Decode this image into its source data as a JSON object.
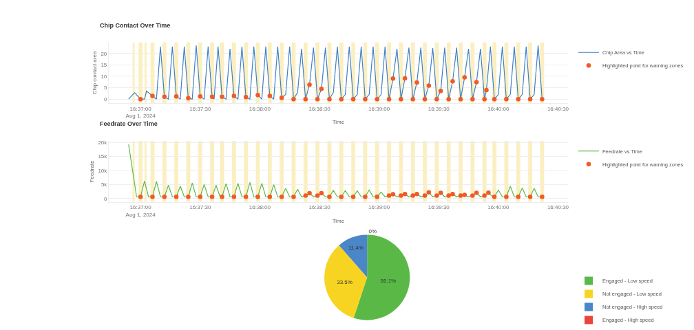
{
  "chart_data": [
    {
      "type": "line",
      "title": "Chip Contact Over Time",
      "xlabel": "Time",
      "ylabel": "Chip contact area",
      "xlim": [
        "2024-08-01T16:36:44",
        "2024-08-01T16:40:35"
      ],
      "xticks": [
        {
          "value": "2024-08-01T16:37:00",
          "label": "16:37:00\nAug 1, 2024"
        },
        {
          "value": "2024-08-01T16:37:30",
          "label": "16:37:30"
        },
        {
          "value": "2024-08-01T16:38:00",
          "label": "16:38:00"
        },
        {
          "value": "2024-08-01T16:38:30",
          "label": "16:38:30"
        },
        {
          "value": "2024-08-01T16:39:00",
          "label": "16:39:00"
        },
        {
          "value": "2024-08-01T16:39:30",
          "label": "16:39:30"
        },
        {
          "value": "2024-08-01T16:40:00",
          "label": "16:40:00"
        },
        {
          "value": "2024-08-01T16:40:30",
          "label": "16:40:30"
        }
      ],
      "ylim": [
        -1.8,
        24.8
      ],
      "yticks": [
        0,
        5,
        10,
        15,
        20
      ],
      "grid": "y",
      "legend": "top right",
      "series": [
        {
          "name": "Chip Area vs Time",
          "color": "#3f80c8",
          "x": [
            "2024-08-01T16:36:54",
            "2024-08-01T16:36:57",
            "2024-08-01T16:37:00",
            "2024-08-01T16:37:02",
            "2024-08-01T16:37:03",
            "2024-08-01T16:37:06",
            "2024-08-01T16:37:08",
            "2024-08-01T16:37:10",
            "2024-08-01T16:37:12",
            "2024-08-01T16:37:14",
            "2024-08-01T16:37:16",
            "2024-08-01T16:37:18",
            "2024-08-01T16:37:20",
            "2024-08-01T16:37:22",
            "2024-08-01T16:37:24",
            "2024-08-01T16:37:26",
            "2024-08-01T16:37:28",
            "2024-08-01T16:37:30",
            "2024-08-01T16:37:32",
            "2024-08-01T16:37:34",
            "2024-08-01T16:37:36",
            "2024-08-01T16:37:37",
            "2024-08-01T16:37:39",
            "2024-08-01T16:37:41",
            "2024-08-01T16:37:43",
            "2024-08-01T16:37:45",
            "2024-08-01T16:37:47",
            "2024-08-01T16:37:49",
            "2024-08-01T16:37:51",
            "2024-08-01T16:37:53",
            "2024-08-01T16:37:55",
            "2024-08-01T16:37:57",
            "2024-08-01T16:37:59",
            "2024-08-01T16:38:01",
            "2024-08-01T16:38:03",
            "2024-08-01T16:38:05",
            "2024-08-01T16:38:07",
            "2024-08-01T16:38:09",
            "2024-08-01T16:38:11",
            "2024-08-01T16:38:13",
            "2024-08-01T16:38:15",
            "2024-08-01T16:38:17",
            "2024-08-01T16:38:19",
            "2024-08-01T16:38:21",
            "2024-08-01T16:38:23",
            "2024-08-01T16:38:25",
            "2024-08-01T16:38:27",
            "2024-08-01T16:38:29",
            "2024-08-01T16:38:31",
            "2024-08-01T16:38:33",
            "2024-08-01T16:38:35",
            "2024-08-01T16:38:37",
            "2024-08-01T16:38:39",
            "2024-08-01T16:38:41",
            "2024-08-01T16:38:43",
            "2024-08-01T16:38:45",
            "2024-08-01T16:38:47",
            "2024-08-01T16:38:49",
            "2024-08-01T16:38:51",
            "2024-08-01T16:38:53",
            "2024-08-01T16:38:55",
            "2024-08-01T16:38:57",
            "2024-08-01T16:38:59",
            "2024-08-01T16:39:01",
            "2024-08-01T16:39:03",
            "2024-08-01T16:39:05",
            "2024-08-01T16:39:07",
            "2024-08-01T16:39:09",
            "2024-08-01T16:39:11",
            "2024-08-01T16:39:13",
            "2024-08-01T16:39:15",
            "2024-08-01T16:39:17",
            "2024-08-01T16:39:19",
            "2024-08-01T16:39:21",
            "2024-08-01T16:39:23",
            "2024-08-01T16:39:25",
            "2024-08-01T16:39:27",
            "2024-08-01T16:39:29",
            "2024-08-01T16:39:31",
            "2024-08-01T16:39:33",
            "2024-08-01T16:39:35",
            "2024-08-01T16:39:37",
            "2024-08-01T16:39:39",
            "2024-08-01T16:39:41",
            "2024-08-01T16:39:43",
            "2024-08-01T16:39:45",
            "2024-08-01T16:39:47",
            "2024-08-01T16:39:49",
            "2024-08-01T16:39:51",
            "2024-08-01T16:39:53",
            "2024-08-01T16:39:54",
            "2024-08-01T16:39:56",
            "2024-08-01T16:39:58",
            "2024-08-01T16:40:00",
            "2024-08-01T16:40:02",
            "2024-08-01T16:40:04",
            "2024-08-01T16:40:06",
            "2024-08-01T16:40:08",
            "2024-08-01T16:40:10",
            "2024-08-01T16:40:12",
            "2024-08-01T16:40:14",
            "2024-08-01T16:40:16",
            "2024-08-01T16:40:18",
            "2024-08-01T16:40:20",
            "2024-08-01T16:40:22"
          ],
          "values": [
            0,
            2.8,
            0,
            0,
            3.5,
            1.4,
            0,
            23,
            1.0,
            0,
            23,
            1.2,
            0,
            23,
            0.4,
            0,
            23.5,
            1.2,
            0,
            23,
            1.0,
            0,
            23,
            1.0,
            0,
            22,
            1.4,
            0,
            23,
            0.9,
            0,
            23,
            1.8,
            0,
            23,
            1.4,
            0,
            23,
            0.6,
            2,
            23,
            0,
            3,
            22,
            0,
            6.3,
            22.5,
            0,
            4.5,
            22.5,
            0,
            3,
            23,
            0,
            2,
            23,
            0,
            2,
            23,
            0,
            2,
            23,
            0,
            2,
            23,
            0,
            9.0,
            22,
            0,
            9.1,
            22.5,
            0,
            7.3,
            22.5,
            0,
            5.9,
            22.3,
            0,
            3.6,
            22.5,
            0,
            7.8,
            22.5,
            0,
            9.5,
            22,
            0,
            7.4,
            22,
            0,
            4.0,
            23,
            0,
            2,
            23,
            0,
            2,
            23,
            0,
            2,
            23,
            0,
            2,
            23.5,
            0
          ]
        },
        {
          "name": "Highlighted point for warning zones",
          "type": "scatter",
          "marker": "circle",
          "color": "#ef5a28",
          "x": [
            "2024-08-01T16:37:00",
            "2024-08-01T16:37:06",
            "2024-08-01T16:37:12",
            "2024-08-01T16:37:18",
            "2024-08-01T16:37:24",
            "2024-08-01T16:37:30",
            "2024-08-01T16:37:36",
            "2024-08-01T16:37:41",
            "2024-08-01T16:37:47",
            "2024-08-01T16:37:53",
            "2024-08-01T16:37:59",
            "2024-08-01T16:38:05",
            "2024-08-01T16:38:11",
            "2024-08-01T16:38:17",
            "2024-08-01T16:38:23",
            "2024-08-01T16:38:25",
            "2024-08-01T16:38:29",
            "2024-08-01T16:38:31",
            "2024-08-01T16:38:35",
            "2024-08-01T16:38:41",
            "2024-08-01T16:38:47",
            "2024-08-01T16:38:53",
            "2024-08-01T16:38:59",
            "2024-08-01T16:39:05",
            "2024-08-01T16:39:07",
            "2024-08-01T16:39:11",
            "2024-08-01T16:39:13",
            "2024-08-01T16:39:17",
            "2024-08-01T16:39:19",
            "2024-08-01T16:39:23",
            "2024-08-01T16:39:25",
            "2024-08-01T16:39:29",
            "2024-08-01T16:39:31",
            "2024-08-01T16:39:35",
            "2024-08-01T16:39:37",
            "2024-08-01T16:39:41",
            "2024-08-01T16:39:43",
            "2024-08-01T16:39:47",
            "2024-08-01T16:39:49",
            "2024-08-01T16:39:53",
            "2024-08-01T16:39:54",
            "2024-08-01T16:39:58",
            "2024-08-01T16:40:04",
            "2024-08-01T16:40:10",
            "2024-08-01T16:40:16",
            "2024-08-01T16:40:22"
          ],
          "values": [
            0,
            1.4,
            1.0,
            1.2,
            0.4,
            1.2,
            1.0,
            1.0,
            1.4,
            0.9,
            1.8,
            1.4,
            0.6,
            0,
            0,
            6.3,
            0,
            4.5,
            0,
            0,
            0,
            0,
            0,
            0,
            9.0,
            0,
            9.1,
            0,
            7.3,
            0,
            5.9,
            0,
            3.6,
            0,
            7.8,
            0,
            9.5,
            0,
            7.4,
            0,
            4.0,
            0,
            0,
            0,
            0,
            0
          ]
        }
      ],
      "bands": [
        {
          "axis": "x",
          "from": "2024-08-01T16:36:56",
          "to": "2024-08-01T16:36:57",
          "color": "#fcefbf"
        },
        {
          "axis": "x",
          "from": "2024-08-01T16:36:59",
          "to": "2024-08-01T16:37:01",
          "color": "#fcefbf"
        },
        {
          "axis": "x",
          "from": "2024-08-01T16:37:02",
          "to": "2024-08-01T16:37:03",
          "color": "#fcefbf"
        },
        {
          "axis": "x",
          "from": "2024-08-01T16:37:05",
          "to": "2024-08-01T16:37:07",
          "color": "#fcefbf"
        },
        {
          "axis": "x",
          "from": "2024-08-01T16:37:11",
          "to": "2024-08-01T16:37:13",
          "color": "#fcefbf"
        },
        {
          "axis": "x",
          "from": "2024-08-01T16:37:17",
          "to": "2024-08-01T16:37:19",
          "color": "#fcefbf"
        },
        {
          "axis": "x",
          "from": "2024-08-01T16:37:23",
          "to": "2024-08-01T16:37:25",
          "color": "#fcefbf"
        },
        {
          "axis": "x",
          "from": "2024-08-01T16:37:29",
          "to": "2024-08-01T16:37:31",
          "color": "#fcefbf"
        },
        {
          "axis": "x",
          "from": "2024-08-01T16:37:35",
          "to": "2024-08-01T16:37:37",
          "color": "#fcefbf"
        },
        {
          "axis": "x",
          "from": "2024-08-01T16:37:40",
          "to": "2024-08-01T16:37:42",
          "color": "#fcefbf"
        },
        {
          "axis": "x",
          "from": "2024-08-01T16:37:46",
          "to": "2024-08-01T16:37:48",
          "color": "#fcefbf"
        },
        {
          "axis": "x",
          "from": "2024-08-01T16:37:52",
          "to": "2024-08-01T16:37:54",
          "color": "#fcefbf"
        },
        {
          "axis": "x",
          "from": "2024-08-01T16:37:58",
          "to": "2024-08-01T16:38:00",
          "color": "#fcefbf"
        },
        {
          "axis": "x",
          "from": "2024-08-01T16:38:04",
          "to": "2024-08-01T16:38:06",
          "color": "#fcefbf"
        },
        {
          "axis": "x",
          "from": "2024-08-01T16:38:10",
          "to": "2024-08-01T16:38:12",
          "color": "#fcefbf"
        },
        {
          "axis": "x",
          "from": "2024-08-01T16:38:16",
          "to": "2024-08-01T16:38:18",
          "color": "#fcefbf"
        },
        {
          "axis": "x",
          "from": "2024-08-01T16:38:22",
          "to": "2024-08-01T16:38:24",
          "color": "#fcefbf"
        },
        {
          "axis": "x",
          "from": "2024-08-01T16:38:28",
          "to": "2024-08-01T16:38:30",
          "color": "#fcefbf"
        },
        {
          "axis": "x",
          "from": "2024-08-01T16:38:34",
          "to": "2024-08-01T16:38:36",
          "color": "#fcefbf"
        },
        {
          "axis": "x",
          "from": "2024-08-01T16:38:40",
          "to": "2024-08-01T16:38:42",
          "color": "#fcefbf"
        },
        {
          "axis": "x",
          "from": "2024-08-01T16:38:46",
          "to": "2024-08-01T16:38:48",
          "color": "#fcefbf"
        },
        {
          "axis": "x",
          "from": "2024-08-01T16:38:52",
          "to": "2024-08-01T16:38:54",
          "color": "#fcefbf"
        },
        {
          "axis": "x",
          "from": "2024-08-01T16:38:58",
          "to": "2024-08-01T16:39:00",
          "color": "#fcefbf"
        },
        {
          "axis": "x",
          "from": "2024-08-01T16:39:04",
          "to": "2024-08-01T16:39:06",
          "color": "#fcefbf"
        },
        {
          "axis": "x",
          "from": "2024-08-01T16:39:10",
          "to": "2024-08-01T16:39:12",
          "color": "#fcefbf"
        },
        {
          "axis": "x",
          "from": "2024-08-01T16:39:16",
          "to": "2024-08-01T16:39:18",
          "color": "#fcefbf"
        },
        {
          "axis": "x",
          "from": "2024-08-01T16:39:22",
          "to": "2024-08-01T16:39:24",
          "color": "#fcefbf"
        },
        {
          "axis": "x",
          "from": "2024-08-01T16:39:28",
          "to": "2024-08-01T16:39:30",
          "color": "#fcefbf"
        },
        {
          "axis": "x",
          "from": "2024-08-01T16:39:34",
          "to": "2024-08-01T16:39:36",
          "color": "#fcefbf"
        },
        {
          "axis": "x",
          "from": "2024-08-01T16:39:40",
          "to": "2024-08-01T16:39:42",
          "color": "#fcefbf"
        },
        {
          "axis": "x",
          "from": "2024-08-01T16:39:46",
          "to": "2024-08-01T16:39:48",
          "color": "#fcefbf"
        },
        {
          "axis": "x",
          "from": "2024-08-01T16:39:52",
          "to": "2024-08-01T16:39:54",
          "color": "#fcefbf"
        },
        {
          "axis": "x",
          "from": "2024-08-01T16:39:57",
          "to": "2024-08-01T16:39:59",
          "color": "#fcefbf"
        },
        {
          "axis": "x",
          "from": "2024-08-01T16:40:03",
          "to": "2024-08-01T16:40:05",
          "color": "#fcefbf"
        },
        {
          "axis": "x",
          "from": "2024-08-01T16:40:09",
          "to": "2024-08-01T16:40:11",
          "color": "#fcefbf"
        },
        {
          "axis": "x",
          "from": "2024-08-01T16:40:15",
          "to": "2024-08-01T16:40:17",
          "color": "#fcefbf"
        },
        {
          "axis": "x",
          "from": "2024-08-01T16:40:21",
          "to": "2024-08-01T16:40:23",
          "color": "#fcefbf"
        }
      ]
    },
    {
      "type": "line",
      "title": "Feedrate Over Time",
      "xlabel": "Time",
      "ylabel": "Feedrate",
      "xlim": [
        "2024-08-01T16:36:44",
        "2024-08-01T16:40:35"
      ],
      "xticks": [
        {
          "value": "2024-08-01T16:37:00",
          "label": "16:37:00\nAug 1, 2024"
        },
        {
          "value": "2024-08-01T16:37:30",
          "label": "16:37:30"
        },
        {
          "value": "2024-08-01T16:38:00",
          "label": "16:38:00"
        },
        {
          "value": "2024-08-01T16:38:30",
          "label": "16:38:30"
        },
        {
          "value": "2024-08-01T16:39:00",
          "label": "16:39:00"
        },
        {
          "value": "2024-08-01T16:39:30",
          "label": "16:39:30"
        },
        {
          "value": "2024-08-01T16:40:00",
          "label": "16:40:00"
        },
        {
          "value": "2024-08-01T16:40:30",
          "label": "16:40:30"
        }
      ],
      "ylim": [
        -1200,
        20500
      ],
      "yticks": [
        0,
        {
          "value": 5000,
          "label": "5k"
        },
        {
          "value": 10000,
          "label": "10k"
        },
        {
          "value": 15000,
          "label": "15k"
        },
        {
          "value": 20000,
          "label": "20k"
        }
      ],
      "grid": "y",
      "legend": "top right",
      "series": [
        {
          "name": "Feedrate vs Time",
          "color": "#5cb947",
          "x": [
            "2024-08-01T16:36:54",
            "2024-08-01T16:36:58",
            "2024-08-01T16:37:00",
            "2024-08-01T16:37:02",
            "2024-08-01T16:37:04",
            "2024-08-01T16:37:06",
            "2024-08-01T16:37:08",
            "2024-08-01T16:37:10",
            "2024-08-01T16:37:12",
            "2024-08-01T16:37:14",
            "2024-08-01T16:37:16",
            "2024-08-01T16:37:18",
            "2024-08-01T16:37:20",
            "2024-08-01T16:37:22",
            "2024-08-01T16:37:24",
            "2024-08-01T16:37:26",
            "2024-08-01T16:37:28",
            "2024-08-01T16:37:30",
            "2024-08-01T16:37:32",
            "2024-08-01T16:37:34",
            "2024-08-01T16:37:36",
            "2024-08-01T16:37:38",
            "2024-08-01T16:37:40",
            "2024-08-01T16:37:41",
            "2024-08-01T16:37:43",
            "2024-08-01T16:37:45",
            "2024-08-01T16:37:47",
            "2024-08-01T16:37:49",
            "2024-08-01T16:37:51",
            "2024-08-01T16:37:53",
            "2024-08-01T16:37:55",
            "2024-08-01T16:37:57",
            "2024-08-01T16:37:59",
            "2024-08-01T16:38:01",
            "2024-08-01T16:38:03",
            "2024-08-01T16:38:05",
            "2024-08-01T16:38:07",
            "2024-08-01T16:38:09",
            "2024-08-01T16:38:11",
            "2024-08-01T16:38:13",
            "2024-08-01T16:38:15",
            "2024-08-01T16:38:17",
            "2024-08-01T16:38:19",
            "2024-08-01T16:38:21",
            "2024-08-01T16:38:23",
            "2024-08-01T16:38:25",
            "2024-08-01T16:38:27",
            "2024-08-01T16:38:29",
            "2024-08-01T16:38:31",
            "2024-08-01T16:38:33",
            "2024-08-01T16:38:35",
            "2024-08-01T16:38:37",
            "2024-08-01T16:38:39",
            "2024-08-01T16:38:41",
            "2024-08-01T16:38:43",
            "2024-08-01T16:38:45",
            "2024-08-01T16:38:47",
            "2024-08-01T16:38:49",
            "2024-08-01T16:38:51",
            "2024-08-01T16:38:53",
            "2024-08-01T16:38:55",
            "2024-08-01T16:38:57",
            "2024-08-01T16:38:59",
            "2024-08-01T16:39:01",
            "2024-08-01T16:39:03",
            "2024-08-01T16:39:05",
            "2024-08-01T16:39:07",
            "2024-08-01T16:39:09",
            "2024-08-01T16:39:11",
            "2024-08-01T16:39:13",
            "2024-08-01T16:39:15",
            "2024-08-01T16:39:17",
            "2024-08-01T16:39:19",
            "2024-08-01T16:39:21",
            "2024-08-01T16:39:23",
            "2024-08-01T16:39:25",
            "2024-08-01T16:39:27",
            "2024-08-01T16:39:29",
            "2024-08-01T16:39:31",
            "2024-08-01T16:39:33",
            "2024-08-01T16:39:35",
            "2024-08-01T16:39:37",
            "2024-08-01T16:39:39",
            "2024-08-01T16:39:41",
            "2024-08-01T16:39:43",
            "2024-08-01T16:39:45",
            "2024-08-01T16:39:47",
            "2024-08-01T16:39:49",
            "2024-08-01T16:39:51",
            "2024-08-01T16:39:53",
            "2024-08-01T16:39:55",
            "2024-08-01T16:39:57",
            "2024-08-01T16:39:58",
            "2024-08-01T16:40:00",
            "2024-08-01T16:40:02",
            "2024-08-01T16:40:04",
            "2024-08-01T16:40:06",
            "2024-08-01T16:40:08",
            "2024-08-01T16:40:10",
            "2024-08-01T16:40:12",
            "2024-08-01T16:40:14",
            "2024-08-01T16:40:16",
            "2024-08-01T16:40:18",
            "2024-08-01T16:40:20",
            "2024-08-01T16:40:22"
          ],
          "values": [
            19300,
            600,
            600,
            6200,
            600,
            600,
            6100,
            600,
            600,
            4700,
            600,
            600,
            4400,
            600,
            600,
            5500,
            600,
            600,
            5000,
            600,
            600,
            4700,
            600,
            600,
            5300,
            600,
            600,
            5400,
            600,
            600,
            5700,
            600,
            600,
            5400,
            600,
            600,
            4900,
            600,
            600,
            3600,
            600,
            600,
            3300,
            600,
            1000,
            1900,
            600,
            1000,
            1900,
            600,
            600,
            2900,
            600,
            600,
            2800,
            600,
            600,
            2700,
            600,
            600,
            3000,
            600,
            600,
            2300,
            600,
            1000,
            1500,
            600,
            1000,
            1600,
            600,
            1000,
            1600,
            600,
            1000,
            2200,
            600,
            1000,
            2000,
            600,
            1000,
            1600,
            600,
            1000,
            1300,
            600,
            1000,
            2000,
            600,
            1000,
            2100,
            600,
            600,
            3000,
            600,
            600,
            4400,
            600,
            600,
            3700,
            600,
            600,
            3600,
            600,
            600
          ]
        },
        {
          "name": "Highlighted point for warning zones",
          "type": "scatter",
          "marker": "circle",
          "color": "#ef5a28",
          "x": [
            "2024-08-01T16:37:00",
            "2024-08-01T16:37:06",
            "2024-08-01T16:37:12",
            "2024-08-01T16:37:18",
            "2024-08-01T16:37:24",
            "2024-08-01T16:37:30",
            "2024-08-01T16:37:36",
            "2024-08-01T16:37:41",
            "2024-08-01T16:37:47",
            "2024-08-01T16:37:53",
            "2024-08-01T16:37:59",
            "2024-08-01T16:38:05",
            "2024-08-01T16:38:11",
            "2024-08-01T16:38:17",
            "2024-08-01T16:38:23",
            "2024-08-01T16:38:25",
            "2024-08-01T16:38:29",
            "2024-08-01T16:38:31",
            "2024-08-01T16:38:35",
            "2024-08-01T16:38:41",
            "2024-08-01T16:38:47",
            "2024-08-01T16:38:53",
            "2024-08-01T16:38:59",
            "2024-08-01T16:39:05",
            "2024-08-01T16:39:07",
            "2024-08-01T16:39:11",
            "2024-08-01T16:39:13",
            "2024-08-01T16:39:17",
            "2024-08-01T16:39:19",
            "2024-08-01T16:39:23",
            "2024-08-01T16:39:25",
            "2024-08-01T16:39:29",
            "2024-08-01T16:39:31",
            "2024-08-01T16:39:35",
            "2024-08-01T16:39:37",
            "2024-08-01T16:39:41",
            "2024-08-01T16:39:43",
            "2024-08-01T16:39:47",
            "2024-08-01T16:39:49",
            "2024-08-01T16:39:53",
            "2024-08-01T16:39:55",
            "2024-08-01T16:39:58",
            "2024-08-01T16:40:04",
            "2024-08-01T16:40:10",
            "2024-08-01T16:40:16",
            "2024-08-01T16:40:22"
          ],
          "values": [
            600,
            600,
            600,
            600,
            600,
            600,
            600,
            600,
            600,
            600,
            600,
            600,
            600,
            600,
            1000,
            1900,
            1000,
            1900,
            600,
            600,
            600,
            600,
            600,
            1000,
            1500,
            1000,
            1600,
            1000,
            1600,
            1000,
            2200,
            1000,
            2000,
            1000,
            1600,
            1000,
            1300,
            1000,
            2000,
            1000,
            2100,
            600,
            600,
            600,
            600,
            600
          ]
        }
      ],
      "bands": [
        {
          "axis": "x",
          "from": "2024-08-01T16:36:56",
          "to": "2024-08-01T16:36:57",
          "color": "#fcefbf"
        },
        {
          "axis": "x",
          "from": "2024-08-01T16:36:59",
          "to": "2024-08-01T16:37:01",
          "color": "#fcefbf"
        },
        {
          "axis": "x",
          "from": "2024-08-01T16:37:02",
          "to": "2024-08-01T16:37:03",
          "color": "#fcefbf"
        },
        {
          "axis": "x",
          "from": "2024-08-01T16:37:05",
          "to": "2024-08-01T16:37:07",
          "color": "#fcefbf"
        },
        {
          "axis": "x",
          "from": "2024-08-01T16:37:11",
          "to": "2024-08-01T16:37:13",
          "color": "#fcefbf"
        },
        {
          "axis": "x",
          "from": "2024-08-01T16:37:17",
          "to": "2024-08-01T16:37:19",
          "color": "#fcefbf"
        },
        {
          "axis": "x",
          "from": "2024-08-01T16:37:23",
          "to": "2024-08-01T16:37:25",
          "color": "#fcefbf"
        },
        {
          "axis": "x",
          "from": "2024-08-01T16:37:29",
          "to": "2024-08-01T16:37:31",
          "color": "#fcefbf"
        },
        {
          "axis": "x",
          "from": "2024-08-01T16:37:35",
          "to": "2024-08-01T16:37:37",
          "color": "#fcefbf"
        },
        {
          "axis": "x",
          "from": "2024-08-01T16:37:40",
          "to": "2024-08-01T16:37:42",
          "color": "#fcefbf"
        },
        {
          "axis": "x",
          "from": "2024-08-01T16:37:46",
          "to": "2024-08-01T16:37:48",
          "color": "#fcefbf"
        },
        {
          "axis": "x",
          "from": "2024-08-01T16:37:52",
          "to": "2024-08-01T16:37:54",
          "color": "#fcefbf"
        },
        {
          "axis": "x",
          "from": "2024-08-01T16:37:58",
          "to": "2024-08-01T16:38:00",
          "color": "#fcefbf"
        },
        {
          "axis": "x",
          "from": "2024-08-01T16:38:04",
          "to": "2024-08-01T16:38:06",
          "color": "#fcefbf"
        },
        {
          "axis": "x",
          "from": "2024-08-01T16:38:10",
          "to": "2024-08-01T16:38:12",
          "color": "#fcefbf"
        },
        {
          "axis": "x",
          "from": "2024-08-01T16:38:16",
          "to": "2024-08-01T16:38:18",
          "color": "#fcefbf"
        },
        {
          "axis": "x",
          "from": "2024-08-01T16:38:22",
          "to": "2024-08-01T16:38:24",
          "color": "#fcefbf"
        },
        {
          "axis": "x",
          "from": "2024-08-01T16:38:28",
          "to": "2024-08-01T16:38:30",
          "color": "#fcefbf"
        },
        {
          "axis": "x",
          "from": "2024-08-01T16:38:34",
          "to": "2024-08-01T16:38:36",
          "color": "#fcefbf"
        },
        {
          "axis": "x",
          "from": "2024-08-01T16:38:40",
          "to": "2024-08-01T16:38:42",
          "color": "#fcefbf"
        },
        {
          "axis": "x",
          "from": "2024-08-01T16:38:46",
          "to": "2024-08-01T16:38:48",
          "color": "#fcefbf"
        },
        {
          "axis": "x",
          "from": "2024-08-01T16:38:52",
          "to": "2024-08-01T16:38:54",
          "color": "#fcefbf"
        },
        {
          "axis": "x",
          "from": "2024-08-01T16:38:58",
          "to": "2024-08-01T16:39:00",
          "color": "#fcefbf"
        },
        {
          "axis": "x",
          "from": "2024-08-01T16:39:04",
          "to": "2024-08-01T16:39:06",
          "color": "#fcefbf"
        },
        {
          "axis": "x",
          "from": "2024-08-01T16:39:10",
          "to": "2024-08-01T16:39:12",
          "color": "#fcefbf"
        },
        {
          "axis": "x",
          "from": "2024-08-01T16:39:16",
          "to": "2024-08-01T16:39:18",
          "color": "#fcefbf"
        },
        {
          "axis": "x",
          "from": "2024-08-01T16:39:22",
          "to": "2024-08-01T16:39:24",
          "color": "#fcefbf"
        },
        {
          "axis": "x",
          "from": "2024-08-01T16:39:28",
          "to": "2024-08-01T16:39:30",
          "color": "#fcefbf"
        },
        {
          "axis": "x",
          "from": "2024-08-01T16:39:34",
          "to": "2024-08-01T16:39:36",
          "color": "#fcefbf"
        },
        {
          "axis": "x",
          "from": "2024-08-01T16:39:40",
          "to": "2024-08-01T16:39:42",
          "color": "#fcefbf"
        },
        {
          "axis": "x",
          "from": "2024-08-01T16:39:46",
          "to": "2024-08-01T16:39:48",
          "color": "#fcefbf"
        },
        {
          "axis": "x",
          "from": "2024-08-01T16:39:52",
          "to": "2024-08-01T16:39:54",
          "color": "#fcefbf"
        },
        {
          "axis": "x",
          "from": "2024-08-01T16:39:57",
          "to": "2024-08-01T16:39:59",
          "color": "#fcefbf"
        },
        {
          "axis": "x",
          "from": "2024-08-01T16:40:03",
          "to": "2024-08-01T16:40:05",
          "color": "#fcefbf"
        },
        {
          "axis": "x",
          "from": "2024-08-01T16:40:09",
          "to": "2024-08-01T16:40:11",
          "color": "#fcefbf"
        },
        {
          "axis": "x",
          "from": "2024-08-01T16:40:15",
          "to": "2024-08-01T16:40:17",
          "color": "#fcefbf"
        },
        {
          "axis": "x",
          "from": "2024-08-01T16:40:21",
          "to": "2024-08-01T16:40:23",
          "color": "#fcefbf"
        }
      ]
    },
    {
      "type": "pie",
      "legend": "right",
      "categories": [
        "Engaged - Low speed",
        "Not engaged - Low speed",
        "Not engaged - High speed",
        "Engaged - High speed"
      ],
      "values": [
        55.1,
        33.5,
        11.4,
        0
      ],
      "colors": [
        "#5ab946",
        "#f8d422",
        "#4a86c8",
        "#e8463a"
      ],
      "value_labels": [
        "55.1%",
        "33.5%",
        "11.4%",
        "0%"
      ]
    }
  ]
}
